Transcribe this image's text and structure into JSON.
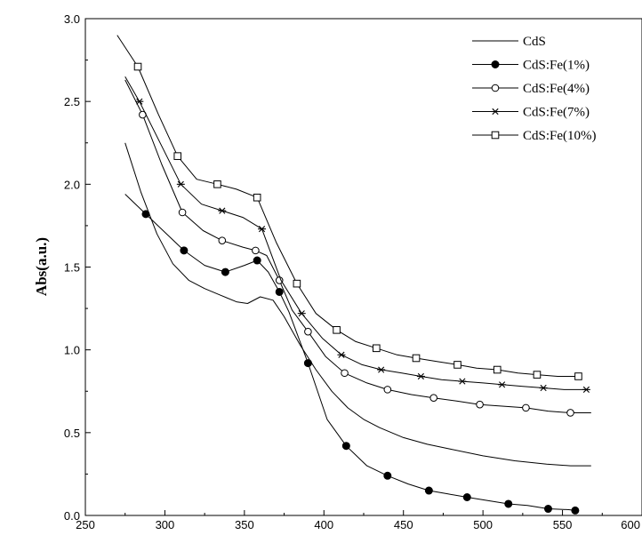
{
  "chart_data": {
    "type": "line",
    "title": "",
    "xlabel": "",
    "ylabel": "Abs(a.u.)",
    "xlim": [
      250,
      600
    ],
    "ylim": [
      0.0,
      3.0
    ],
    "x_ticks": [
      250,
      300,
      350,
      400,
      450,
      500,
      550,
      600
    ],
    "y_ticks": [
      0.0,
      0.5,
      1.0,
      1.5,
      2.0,
      2.5,
      3.0
    ],
    "x_tick_labels": [
      "250",
      "300",
      "350",
      "400",
      "450",
      "500",
      "550",
      "600"
    ],
    "y_tick_labels": [
      "0.0",
      "0.5",
      "1.0",
      "1.5",
      "2.0",
      "2.5",
      "3.0"
    ],
    "grid": false,
    "legend_position": "top-right",
    "series": [
      {
        "name": "CdS",
        "marker": "none",
        "x": [
          275,
          285,
          295,
          305,
          315,
          325,
          335,
          345,
          352,
          360,
          368,
          375,
          385,
          395,
          405,
          415,
          425,
          435,
          450,
          465,
          480,
          500,
          520,
          540,
          555,
          568
        ],
        "y": [
          2.25,
          1.95,
          1.7,
          1.52,
          1.42,
          1.37,
          1.33,
          1.29,
          1.28,
          1.32,
          1.3,
          1.2,
          1.03,
          0.88,
          0.75,
          0.65,
          0.58,
          0.53,
          0.47,
          0.43,
          0.4,
          0.36,
          0.33,
          0.31,
          0.3,
          0.3
        ]
      },
      {
        "name": "CdS:Fe(1%)",
        "marker": "filled-circle",
        "x": [
          275,
          288,
          300,
          312,
          325,
          338,
          350,
          358,
          365,
          372,
          378,
          390,
          402,
          414,
          427,
          440,
          453,
          466,
          478,
          490,
          503,
          516,
          528,
          541,
          554,
          558
        ],
        "y": [
          1.94,
          1.82,
          1.71,
          1.6,
          1.51,
          1.47,
          1.51,
          1.54,
          1.47,
          1.35,
          1.23,
          0.92,
          0.58,
          0.42,
          0.3,
          0.24,
          0.19,
          0.15,
          0.13,
          0.11,
          0.09,
          0.07,
          0.06,
          0.04,
          0.035,
          0.03
        ]
      },
      {
        "name": "CdS:Fe(4%)",
        "marker": "open-circle",
        "x": [
          275,
          286,
          298,
          311,
          324,
          336,
          349,
          357,
          364,
          372,
          380,
          390,
          401,
          413,
          427,
          440,
          455,
          469,
          484,
          498,
          512,
          527,
          541,
          555,
          568
        ],
        "y": [
          2.63,
          2.42,
          2.12,
          1.83,
          1.72,
          1.66,
          1.62,
          1.6,
          1.57,
          1.42,
          1.24,
          1.11,
          0.96,
          0.86,
          0.8,
          0.76,
          0.73,
          0.71,
          0.69,
          0.67,
          0.66,
          0.65,
          0.63,
          0.62,
          0.62
        ]
      },
      {
        "name": "CdS:Fe(7%)",
        "marker": "star",
        "x": [
          275,
          284,
          297,
          310,
          323,
          336,
          349,
          361,
          373,
          386,
          399,
          411,
          424,
          436,
          449,
          461,
          474,
          487,
          500,
          512,
          525,
          538,
          551,
          565
        ],
        "y": [
          2.65,
          2.5,
          2.25,
          2.0,
          1.88,
          1.84,
          1.8,
          1.73,
          1.42,
          1.22,
          1.07,
          0.97,
          0.91,
          0.88,
          0.86,
          0.84,
          0.82,
          0.81,
          0.8,
          0.79,
          0.78,
          0.77,
          0.76,
          0.76
        ]
      },
      {
        "name": "CdS:Fe(10%)",
        "marker": "open-square",
        "x": [
          270,
          283,
          296,
          308,
          320,
          333,
          345,
          358,
          370,
          383,
          395,
          408,
          420,
          433,
          446,
          458,
          471,
          484,
          496,
          509,
          522,
          534,
          547,
          560
        ],
        "y": [
          2.9,
          2.71,
          2.42,
          2.17,
          2.03,
          2.0,
          1.97,
          1.92,
          1.65,
          1.4,
          1.22,
          1.12,
          1.05,
          1.01,
          0.97,
          0.95,
          0.93,
          0.91,
          0.89,
          0.88,
          0.86,
          0.85,
          0.84,
          0.84
        ]
      }
    ]
  }
}
